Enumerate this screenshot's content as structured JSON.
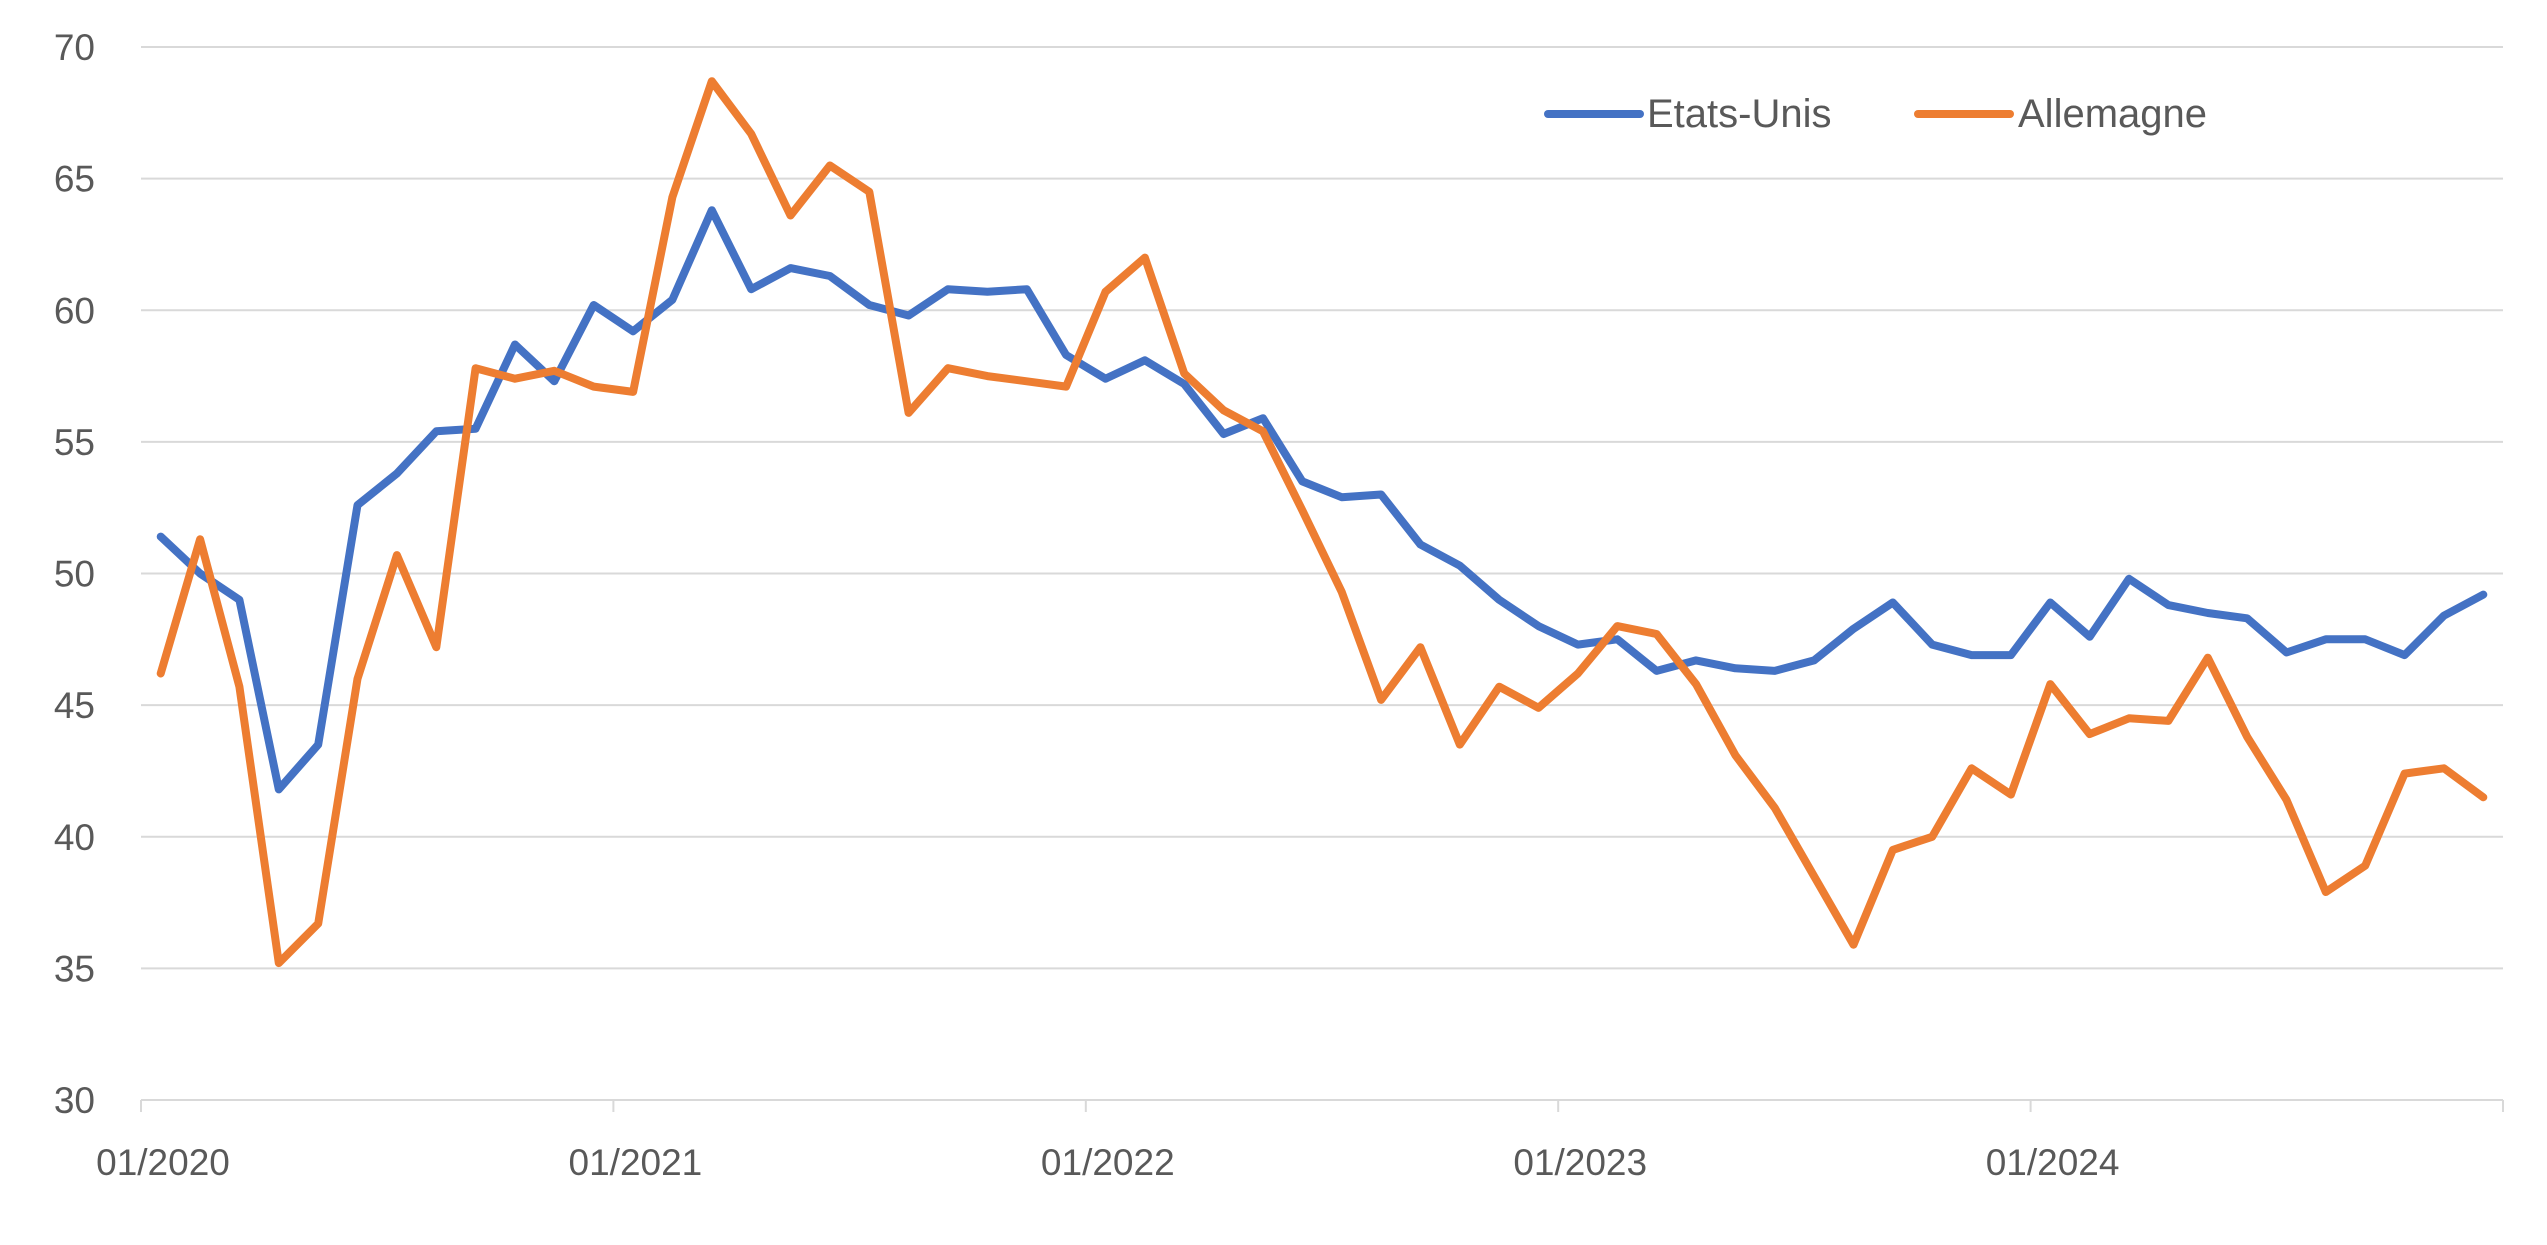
{
  "chart_data": {
    "type": "line",
    "title": "",
    "xlabel": "",
    "ylabel": "",
    "ylim": [
      30,
      70
    ],
    "yticks": [
      30,
      35,
      40,
      45,
      50,
      55,
      60,
      65,
      70
    ],
    "xlim": [
      "2020-01",
      "2024-12"
    ],
    "xtick_labels": [
      "01/2020",
      "01/2021",
      "01/2022",
      "01/2023",
      "01/2024"
    ],
    "grid": "horizontal",
    "legend_position": "top-right",
    "x": [
      "2020-01",
      "2020-02",
      "2020-03",
      "2020-04",
      "2020-05",
      "2020-06",
      "2020-07",
      "2020-08",
      "2020-09",
      "2020-10",
      "2020-11",
      "2020-12",
      "2021-01",
      "2021-02",
      "2021-03",
      "2021-04",
      "2021-05",
      "2021-06",
      "2021-07",
      "2021-08",
      "2021-09",
      "2021-10",
      "2021-11",
      "2021-12",
      "2022-01",
      "2022-02",
      "2022-03",
      "2022-04",
      "2022-05",
      "2022-06",
      "2022-07",
      "2022-08",
      "2022-09",
      "2022-10",
      "2022-11",
      "2022-12",
      "2023-01",
      "2023-02",
      "2023-03",
      "2023-04",
      "2023-05",
      "2023-06",
      "2023-07",
      "2023-08",
      "2023-09",
      "2023-10",
      "2023-11",
      "2023-12",
      "2024-01",
      "2024-02",
      "2024-03",
      "2024-04",
      "2024-05",
      "2024-06",
      "2024-07",
      "2024-08",
      "2024-09",
      "2024-10",
      "2024-11",
      "2024-12"
    ],
    "series": [
      {
        "name": "Etats-Unis",
        "color": "#4472C4",
        "values": [
          51.4,
          50.0,
          49.0,
          41.8,
          43.5,
          52.6,
          53.8,
          55.4,
          55.5,
          58.7,
          57.3,
          60.2,
          59.2,
          60.4,
          63.8,
          60.8,
          61.6,
          61.3,
          60.2,
          59.8,
          60.8,
          60.7,
          60.8,
          58.3,
          57.4,
          58.1,
          57.2,
          55.3,
          55.9,
          53.5,
          52.9,
          53.0,
          51.1,
          50.3,
          49.0,
          48.0,
          47.3,
          47.5,
          46.3,
          46.7,
          46.4,
          46.3,
          46.7,
          47.9,
          48.9,
          47.3,
          46.9,
          46.9,
          48.9,
          47.6,
          49.8,
          48.8,
          48.5,
          48.3,
          47.0,
          47.5,
          47.5,
          46.9,
          48.4,
          49.2
        ]
      },
      {
        "name": "Allemagne",
        "color": "#ED7D31",
        "values": [
          46.2,
          51.3,
          45.7,
          35.2,
          36.7,
          46.0,
          50.7,
          47.2,
          57.8,
          57.4,
          57.7,
          57.1,
          56.9,
          64.3,
          68.7,
          66.7,
          63.6,
          65.5,
          64.5,
          56.1,
          57.8,
          57.5,
          57.3,
          57.1,
          60.7,
          62.0,
          57.6,
          56.2,
          55.4,
          52.4,
          49.3,
          45.2,
          47.2,
          43.5,
          45.7,
          44.9,
          46.2,
          48.0,
          47.7,
          45.8,
          43.1,
          41.1,
          38.5,
          35.9,
          39.5,
          40.0,
          42.6,
          41.6,
          45.8,
          43.9,
          44.5,
          44.4,
          46.8,
          43.8,
          41.4,
          37.9,
          38.9,
          42.4,
          42.6,
          41.5
        ]
      }
    ]
  }
}
